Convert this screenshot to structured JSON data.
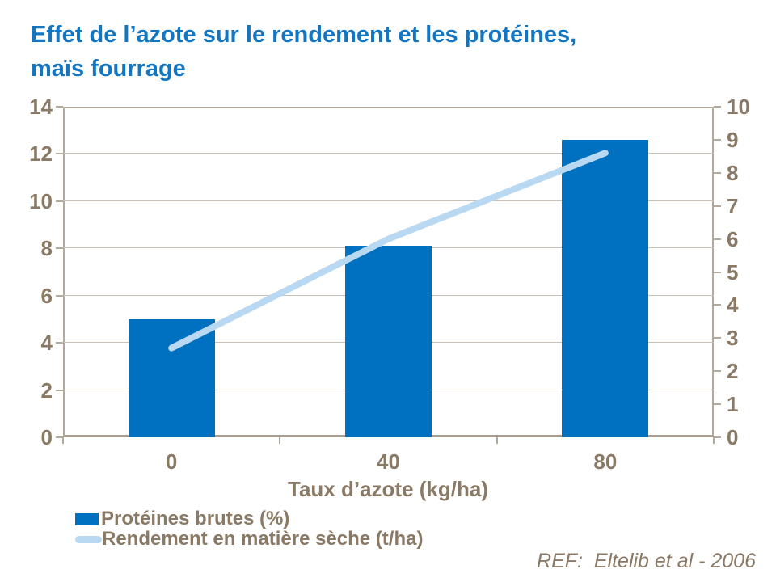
{
  "title": {
    "line1": "Effet de l’azote sur le rendement et les protéines,",
    "line2": "maïs fourrage"
  },
  "chart_data": {
    "type": "combo-bar-line",
    "categories": [
      "0",
      "40",
      "80"
    ],
    "series": [
      {
        "name": "Protéines brutes (%)",
        "type": "bar",
        "axis": "left",
        "values": [
          5.0,
          8.1,
          12.6
        ],
        "color": "#0070C0"
      },
      {
        "name": "Rendement en matière sèche (t/ha)",
        "type": "line",
        "axis": "right",
        "values": [
          2.7,
          6.0,
          8.6
        ],
        "color": "#B9D9F3"
      }
    ],
    "xlabel": "Taux d’azote (kg/ha)",
    "left_axis": {
      "min": 0,
      "max": 14,
      "step": 2
    },
    "right_axis": {
      "min": 0,
      "max": 10,
      "step": 1
    },
    "grid": true,
    "legend_position": "bottom-left"
  },
  "footer": {
    "ref": "REF:  Eltelib et al - 2006"
  },
  "colors": {
    "title_text": "#1276C2",
    "bar_fill": "#0070C0",
    "line_stroke": "#B9D9F3",
    "axis_text": "#8A7964",
    "axis_line": "#B2A89C",
    "gridline": "#C9C1B5"
  }
}
